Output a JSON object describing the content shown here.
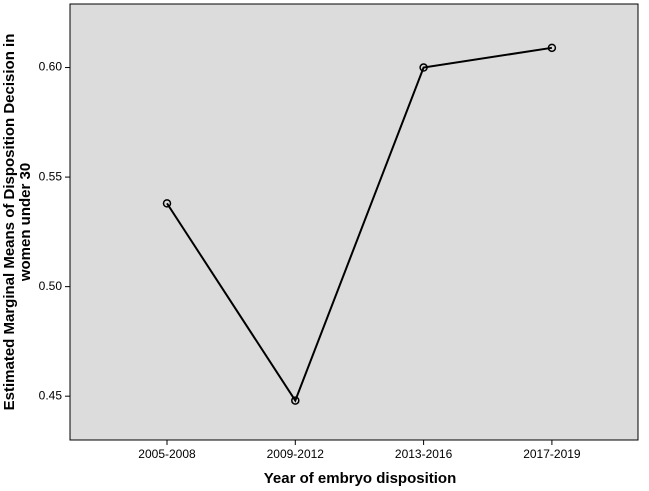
{
  "chart_data": {
    "type": "line",
    "xlabel": "Year of embryo disposition",
    "ylabel": [
      "Estimated Marginal Means of Disposition Decision in",
      "women under 30"
    ],
    "categories": [
      "2005-2008",
      "2009-2012",
      "2013-2016",
      "2017-2019"
    ],
    "values": [
      0.538,
      0.448,
      0.6,
      0.609
    ],
    "color": "#000000",
    "ylim": [
      0.43,
      0.629
    ],
    "yticks": [
      0.45,
      {
        "value": 0.5,
        "label": "0.50"
      },
      0.55,
      {
        "value": 0.6,
        "label": "0.60"
      }
    ],
    "background": "#dcdcdc"
  }
}
